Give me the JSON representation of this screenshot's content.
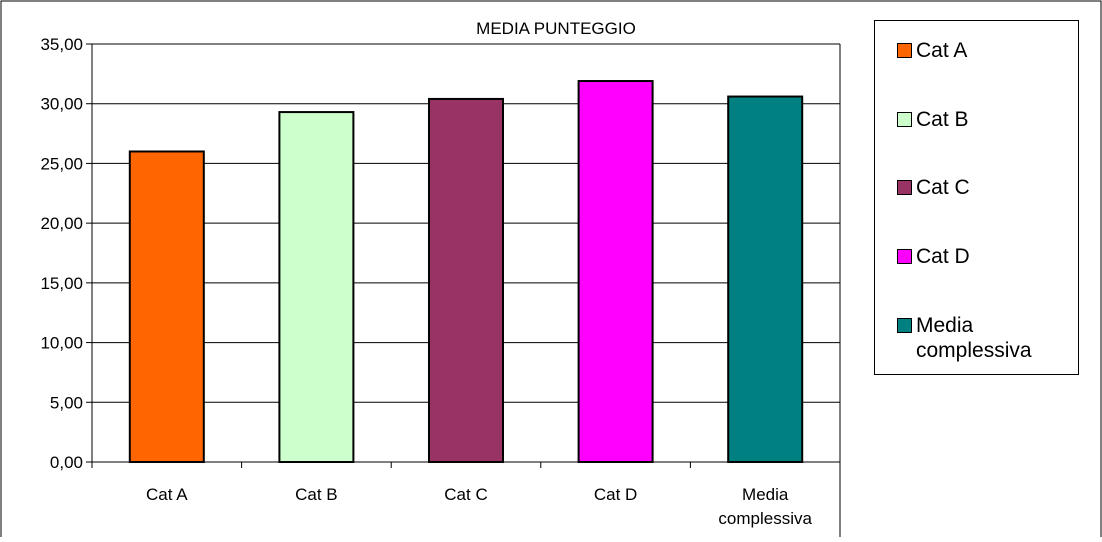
{
  "chart_data": {
    "type": "bar",
    "title": "MEDIA PUNTEGGIO",
    "xlabel": "",
    "ylabel": "",
    "categories": [
      "Cat A",
      "Cat B",
      "Cat C",
      "Cat D",
      "Media complessiva"
    ],
    "category_lines": [
      [
        "Cat A"
      ],
      [
        "Cat B"
      ],
      [
        "Cat C"
      ],
      [
        "Cat D"
      ],
      [
        "Media",
        "complessiva"
      ]
    ],
    "values": [
      26.0,
      29.3,
      30.4,
      31.9,
      30.6
    ],
    "colors": [
      "#FF6600",
      "#CCFFCC",
      "#993366",
      "#FF00FF",
      "#008080"
    ],
    "ylim": [
      0,
      35
    ],
    "yticks": [
      0,
      5,
      10,
      15,
      20,
      25,
      30,
      35
    ],
    "ytick_labels": [
      "0,00",
      "5,00",
      "10,00",
      "15,00",
      "20,00",
      "25,00",
      "30,00",
      "35,00"
    ],
    "grid": true,
    "legend_position": "right",
    "legend": [
      {
        "label": "Cat A",
        "color": "#FF6600"
      },
      {
        "label": "Cat B",
        "color": "#CCFFCC"
      },
      {
        "label": "Cat C",
        "color": "#993366"
      },
      {
        "label": "Cat D",
        "color": "#FF00FF"
      },
      {
        "label": "Media complessiva",
        "color": "#008080"
      }
    ]
  }
}
